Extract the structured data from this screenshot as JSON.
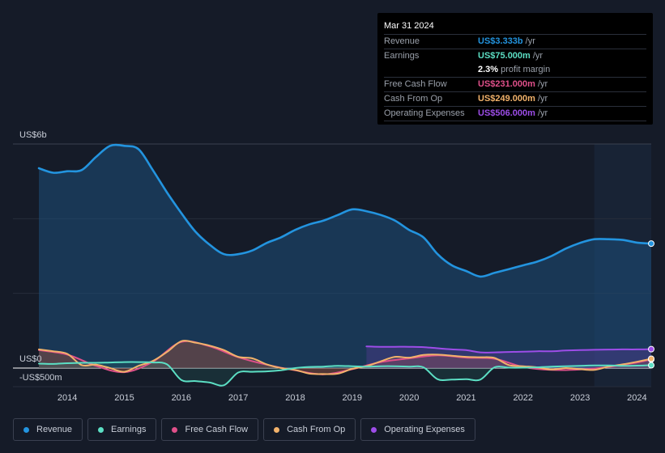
{
  "tooltip": {
    "date": "Mar 31 2024",
    "rows": [
      {
        "label": "Revenue",
        "value": "US$3.333b",
        "unit": "/yr",
        "color": "#2394df"
      },
      {
        "label": "Earnings",
        "value": "US$75.000m",
        "unit": "/yr",
        "color": "#5cdfc4"
      },
      {
        "label": "",
        "value": "2.3%",
        "unit": "profit margin",
        "color": "#ffffff"
      },
      {
        "label": "Free Cash Flow",
        "value": "US$231.000m",
        "unit": "/yr",
        "color": "#e0508a"
      },
      {
        "label": "Cash From Op",
        "value": "US$249.000m",
        "unit": "/yr",
        "color": "#f2b26b"
      },
      {
        "label": "Operating Expenses",
        "value": "US$506.000m",
        "unit": "/yr",
        "color": "#9d4de8"
      }
    ]
  },
  "legend": [
    {
      "label": "Revenue",
      "color": "#2394df"
    },
    {
      "label": "Earnings",
      "color": "#5cdfc4"
    },
    {
      "label": "Free Cash Flow",
      "color": "#e0508a"
    },
    {
      "label": "Cash From Op",
      "color": "#f2b26b"
    },
    {
      "label": "Operating Expenses",
      "color": "#9d4de8"
    }
  ],
  "chart_data": {
    "type": "line",
    "title": "",
    "ylabel_top": "US$6b",
    "ylabel_zero": "US$0",
    "ylabel_bottom": "-US$500m",
    "ylim": [
      -500,
      6000
    ],
    "xlim": [
      2013.5,
      2024.25
    ],
    "x_ticks": [
      "2014",
      "2015",
      "2016",
      "2017",
      "2018",
      "2019",
      "2020",
      "2021",
      "2022",
      "2023",
      "2024"
    ],
    "x_tick_values": [
      2014,
      2015,
      2016,
      2017,
      2018,
      2019,
      2020,
      2021,
      2022,
      2023,
      2024
    ],
    "forecast_start": 2023.25,
    "series": [
      {
        "name": "Revenue",
        "color": "#2394df",
        "x": [
          2013.5,
          2013.75,
          2014.0,
          2014.25,
          2014.5,
          2014.75,
          2015.0,
          2015.25,
          2015.5,
          2015.75,
          2016.0,
          2016.25,
          2016.5,
          2016.75,
          2017.0,
          2017.25,
          2017.5,
          2017.75,
          2018.0,
          2018.25,
          2018.5,
          2018.75,
          2019.0,
          2019.25,
          2019.5,
          2019.75,
          2020.0,
          2020.25,
          2020.5,
          2020.75,
          2021.0,
          2021.25,
          2021.5,
          2021.75,
          2022.0,
          2022.25,
          2022.5,
          2022.75,
          2023.0,
          2023.25,
          2023.5,
          2023.75,
          2024.0,
          2024.25
        ],
        "values": [
          5350,
          5230,
          5270,
          5300,
          5650,
          5950,
          5950,
          5860,
          5300,
          4700,
          4150,
          3650,
          3300,
          3050,
          3050,
          3150,
          3350,
          3500,
          3700,
          3850,
          3950,
          4100,
          4250,
          4200,
          4100,
          3950,
          3700,
          3500,
          3050,
          2750,
          2600,
          2450,
          2550,
          2650,
          2750,
          2850,
          3000,
          3200,
          3350,
          3450,
          3450,
          3430,
          3360,
          3333
        ]
      },
      {
        "name": "Earnings",
        "color": "#5cdfc4",
        "x": [
          2013.5,
          2013.75,
          2014.0,
          2014.25,
          2014.5,
          2014.75,
          2015.0,
          2015.25,
          2015.5,
          2015.75,
          2016.0,
          2016.25,
          2016.5,
          2016.75,
          2017.0,
          2017.25,
          2017.5,
          2017.75,
          2018.0,
          2018.25,
          2018.5,
          2018.75,
          2019.0,
          2019.25,
          2019.5,
          2019.75,
          2020.0,
          2020.25,
          2020.5,
          2020.75,
          2021.0,
          2021.25,
          2021.5,
          2021.75,
          2022.0,
          2022.25,
          2022.5,
          2022.75,
          2023.0,
          2023.25,
          2023.5,
          2023.75,
          2024.0,
          2024.25
        ],
        "values": [
          120,
          110,
          130,
          140,
          140,
          150,
          160,
          160,
          150,
          100,
          -320,
          -350,
          -390,
          -460,
          -120,
          -100,
          -90,
          -60,
          0,
          30,
          40,
          60,
          50,
          40,
          50,
          50,
          40,
          20,
          -300,
          -310,
          -300,
          -310,
          20,
          10,
          10,
          20,
          40,
          50,
          60,
          70,
          70,
          60,
          65,
          75
        ]
      },
      {
        "name": "Cash From Op",
        "color": "#f2b26b",
        "x": [
          2013.5,
          2013.75,
          2014.0,
          2014.25,
          2014.5,
          2014.75,
          2015.0,
          2015.25,
          2015.5,
          2015.75,
          2016.0,
          2016.25,
          2016.5,
          2016.75,
          2017.0,
          2017.25,
          2017.5,
          2017.75,
          2018.0,
          2018.25,
          2018.5,
          2018.75,
          2019.0,
          2019.25,
          2019.5,
          2019.75,
          2020.0,
          2020.25,
          2020.5,
          2020.75,
          2021.0,
          2021.25,
          2021.5,
          2021.75,
          2022.0,
          2022.25,
          2022.5,
          2022.75,
          2023.0,
          2023.25,
          2023.5,
          2023.75,
          2024.0,
          2024.25
        ],
        "values": [
          500,
          450,
          380,
          80,
          90,
          0,
          -100,
          60,
          190,
          430,
          720,
          680,
          600,
          480,
          300,
          260,
          100,
          0,
          -50,
          -150,
          -160,
          -150,
          -20,
          50,
          180,
          300,
          280,
          350,
          360,
          330,
          300,
          290,
          270,
          80,
          50,
          20,
          -40,
          0,
          -30,
          -50,
          40,
          100,
          170,
          249
        ]
      },
      {
        "name": "Free Cash Flow",
        "color": "#e0508a",
        "x": [
          2013.5,
          2014.0,
          2014.5,
          2015.0,
          2015.5,
          2016.0,
          2016.5,
          2017.0,
          2017.5,
          2018.0,
          2018.5,
          2019.0,
          2019.5,
          2020.0,
          2020.5,
          2021.0,
          2021.5,
          2022.0,
          2022.5,
          2023.0,
          2023.5,
          2024.0,
          2024.25
        ],
        "values": [
          480,
          360,
          60,
          -110,
          170,
          700,
          580,
          290,
          90,
          -60,
          -170,
          -30,
          160,
          260,
          340,
          280,
          250,
          30,
          -50,
          -40,
          30,
          150,
          231
        ]
      },
      {
        "name": "Operating Expenses",
        "color": "#9d4de8",
        "x": [
          2019.25,
          2019.5,
          2019.75,
          2020.0,
          2020.25,
          2020.5,
          2020.75,
          2021.0,
          2021.25,
          2021.5,
          2021.75,
          2022.0,
          2022.25,
          2022.5,
          2022.75,
          2023.0,
          2023.25,
          2023.5,
          2023.75,
          2024.0,
          2024.25
        ],
        "values": [
          580,
          570,
          570,
          570,
          560,
          530,
          500,
          480,
          420,
          420,
          430,
          440,
          450,
          450,
          470,
          480,
          490,
          495,
          500,
          500,
          506
        ]
      }
    ]
  }
}
